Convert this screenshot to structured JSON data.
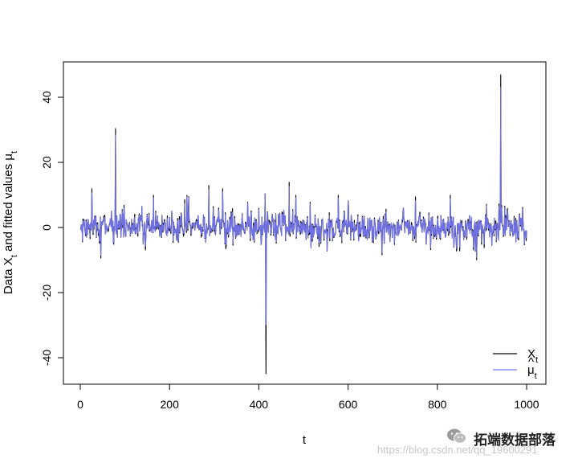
{
  "chart_data": {
    "type": "line",
    "title": "",
    "xlabel": "t",
    "ylabel": "Data X",
    "ylabel_sub": "t",
    "ylabel_rest": " and fitted values ",
    "ylabel_hat": "μ",
    "ylabel_hat_sub": "t",
    "xlim": [
      0,
      1000
    ],
    "ylim": [
      -47,
      50
    ],
    "x_ticks": [
      0,
      200,
      400,
      600,
      800,
      1000
    ],
    "y_ticks": [
      -40,
      -20,
      0,
      20,
      40
    ],
    "x_tick_labels": [
      "0",
      "200",
      "400",
      "600",
      "800",
      "1000"
    ],
    "y_tick_labels": [
      "-40",
      "-20",
      "0",
      "20",
      "40"
    ],
    "grid": false,
    "legend_position": "bottom-right",
    "n_points": 1000,
    "spikes": [
      {
        "x": 25,
        "y": 12
      },
      {
        "x": 45,
        "y": -9.5
      },
      {
        "x": 78,
        "y": 30.5
      },
      {
        "x": 145,
        "y": -7
      },
      {
        "x": 163,
        "y": 10
      },
      {
        "x": 238,
        "y": 10
      },
      {
        "x": 287,
        "y": 13
      },
      {
        "x": 318,
        "y": 12
      },
      {
        "x": 413,
        "y": 10.5
      },
      {
        "x": 415,
        "y": -45
      },
      {
        "x": 467,
        "y": 14
      },
      {
        "x": 482,
        "y": 10
      },
      {
        "x": 538,
        "y": -5
      },
      {
        "x": 577,
        "y": 10
      },
      {
        "x": 600,
        "y": 6.5
      },
      {
        "x": 675,
        "y": -8.5
      },
      {
        "x": 750,
        "y": 9.5
      },
      {
        "x": 828,
        "y": 10
      },
      {
        "x": 880,
        "y": -7
      },
      {
        "x": 887,
        "y": -10
      },
      {
        "x": 941,
        "y": 47
      }
    ],
    "series": [
      {
        "name": "X",
        "name_sub": "t",
        "color": "#000000"
      },
      {
        "name": "μ",
        "name_sub": "t",
        "hat": "^",
        "color": "#7b7bff"
      }
    ]
  },
  "watermark": {
    "text": "拓端数据部落",
    "url": "https://blog.csdn.net/qq_19600291",
    "icon": "wechat-icon"
  }
}
